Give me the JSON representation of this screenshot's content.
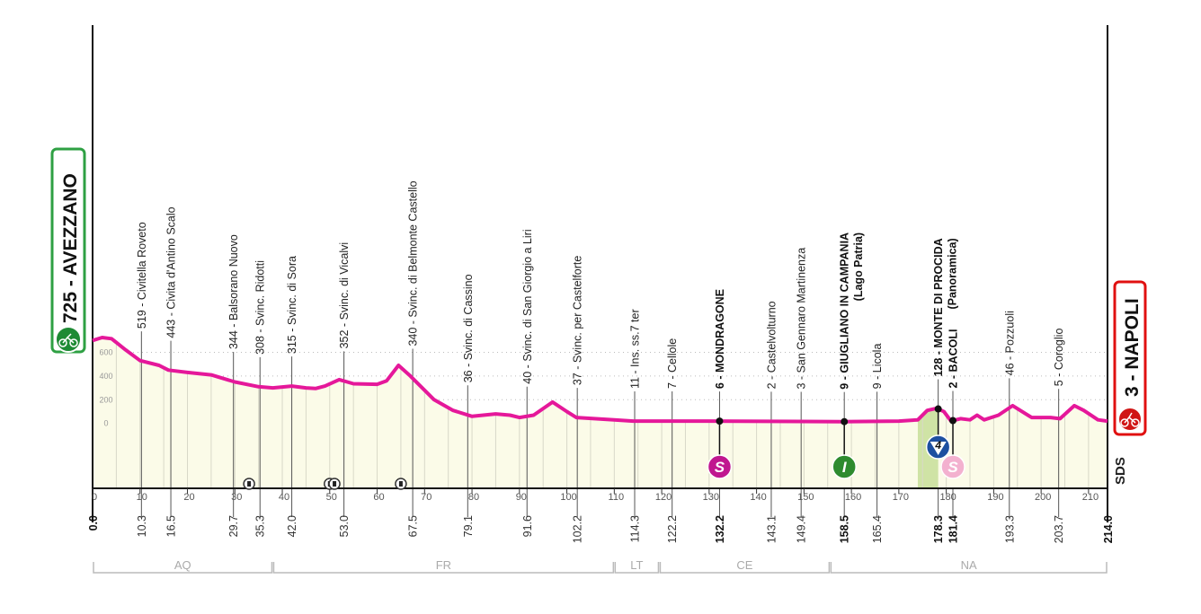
{
  "chart_data": {
    "type": "area",
    "xlim": [
      0,
      214
    ],
    "ylim": [
      -550,
      900
    ],
    "x_ticks": [
      0,
      10,
      20,
      30,
      40,
      50,
      60,
      70,
      80,
      90,
      100,
      110,
      120,
      130,
      140,
      150,
      160,
      170,
      180,
      190,
      200,
      210
    ],
    "y_ticks": [
      600,
      400,
      200,
      0
    ],
    "grid": true,
    "colors": {
      "profile": "#e5189a",
      "fill": "#fbfbe8",
      "climb_fill": "#cfe3a5",
      "start": "#2ea043",
      "finish": "#e01010"
    },
    "profile": {
      "x": [
        0,
        2,
        4,
        7,
        10,
        14,
        16,
        20,
        25,
        30,
        35,
        38,
        42,
        45,
        47,
        49,
        52,
        55,
        60,
        62,
        64.5,
        67,
        72,
        76,
        80,
        85,
        88,
        90,
        93,
        97,
        100,
        102,
        110,
        114,
        130,
        158,
        170,
        174,
        176,
        178,
        179.5,
        181,
        183,
        185,
        186.5,
        188,
        191,
        194,
        198,
        202,
        204,
        207,
        209,
        212,
        214
      ],
      "elevation": [
        700,
        725,
        715,
        620,
        530,
        490,
        450,
        430,
        410,
        350,
        310,
        300,
        315,
        300,
        295,
        315,
        370,
        335,
        330,
        360,
        490,
        400,
        200,
        110,
        60,
        80,
        70,
        50,
        70,
        180,
        100,
        50,
        30,
        20,
        20,
        15,
        20,
        30,
        110,
        128,
        100,
        20,
        40,
        30,
        70,
        30,
        70,
        150,
        50,
        50,
        40,
        150,
        110,
        30,
        20
      ]
    },
    "start": {
      "label": "725 - AVEZZANO",
      "km": 0.0,
      "km_label": "0.0"
    },
    "finish": {
      "label": "3 - NAPOLI",
      "km": 214.0,
      "km_label": "214.0"
    },
    "waypoints": [
      {
        "km": 10.3,
        "km_label": "10.3",
        "label": "519 - Civitella Roveto"
      },
      {
        "km": 16.5,
        "km_label": "16.5",
        "label": "443 - Civita d'Antino Scalo"
      },
      {
        "km": 29.7,
        "km_label": "29.7",
        "label": "344 - Balsorano Nuovo"
      },
      {
        "km": 35.3,
        "km_label": "35.3",
        "label": "308 - Svinc. Ridotti"
      },
      {
        "km": 42.0,
        "km_label": "42.0",
        "label": "315 - Svinc. di Sora"
      },
      {
        "km": 53.0,
        "km_label": "53.0",
        "label": "352 - Svinc. di Vicalvi"
      },
      {
        "km": 67.5,
        "km_label": "67.5",
        "label": "340 - Svinc. di Belmonte Castello"
      },
      {
        "km": 79.1,
        "km_label": "79.1",
        "label": "36 - Svinc. di Cassino"
      },
      {
        "km": 91.6,
        "km_label": "91.6",
        "label": "40 - Svinc. di San Giorgio a Liri"
      },
      {
        "km": 102.2,
        "km_label": "102.2",
        "label": "37 - Svinc. per Castelforte"
      },
      {
        "km": 114.3,
        "km_label": "114.3",
        "label": "11 - Ins. ss.7 ter"
      },
      {
        "km": 122.2,
        "km_label": "122.2",
        "label": "7 - Cellole"
      },
      {
        "km": 132.2,
        "km_label": "132.2",
        "label": "6 - MONDRAGONE",
        "bold": true,
        "marker": "S",
        "marker_type": "sprint"
      },
      {
        "km": 143.1,
        "km_label": "143.1",
        "label": "2 - Castelvolturno"
      },
      {
        "km": 149.4,
        "km_label": "149.4",
        "label": "3 - San Gennaro Martinenza"
      },
      {
        "km": 158.5,
        "km_label": "158.5",
        "label": "9 - GIUGLIANO IN CAMPANIA",
        "sub": "(Lago Patria)",
        "bold": true,
        "marker": "I",
        "marker_type": "intermediate"
      },
      {
        "km": 165.4,
        "km_label": "165.4",
        "label": "9 - Licola"
      },
      {
        "km": 178.3,
        "km_label": "178.3",
        "label": "128 - MONTE DI PROCIDA",
        "sub": "(Panoramica)",
        "bold": true,
        "marker": "4",
        "marker_type": "climb-cat-4"
      },
      {
        "km": 181.4,
        "km_label": "181.4",
        "label": "2 - BACOLI",
        "bold": true,
        "marker": "S",
        "marker_type": "sprint-secondary"
      },
      {
        "km": 193.3,
        "km_label": "193.3",
        "label": "46 - Pozzuoli"
      },
      {
        "km": 203.7,
        "km_label": "203.7",
        "label": "5 - Coroglio"
      }
    ],
    "tunnels_km": [
      33,
      50,
      51,
      65
    ],
    "climb_zone_km": [
      174,
      178.3
    ],
    "regions": [
      {
        "label": "AQ",
        "from": 0,
        "to": 38
      },
      {
        "label": "FR",
        "from": 38,
        "to": 110
      },
      {
        "label": "LT",
        "from": 110,
        "to": 119.5
      },
      {
        "label": "CE",
        "from": 119.5,
        "to": 155.5
      },
      {
        "label": "NA",
        "from": 155.5,
        "to": 214
      }
    ],
    "logo": "SDS"
  }
}
